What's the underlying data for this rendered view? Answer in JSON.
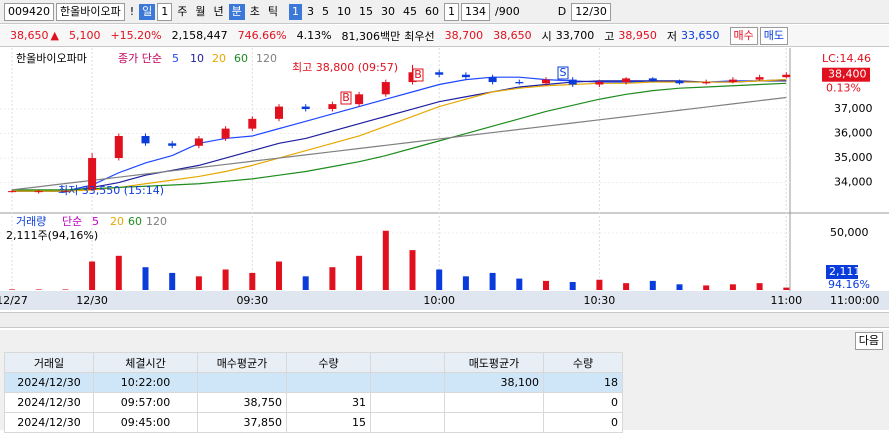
{
  "toolbar": {
    "code": "009420",
    "name": "한올바이오파",
    "alert": "!",
    "period": "일",
    "period_n": "1",
    "periods": [
      "주",
      "월",
      "년",
      "분",
      "초",
      "틱"
    ],
    "intervals": [
      "1",
      "3",
      "5",
      "10",
      "15",
      "30",
      "45",
      "60"
    ],
    "unit": "1",
    "count": "134",
    "max": "/900",
    "d_label": "D",
    "date": "12/30"
  },
  "quote": {
    "price": "38,650",
    "arrow": "▲",
    "change": "5,100",
    "rate": "+15.20%",
    "volume": "2,158,447",
    "vol_rate": "746.66%",
    "turnover": "4.13%",
    "amount": "81,306백만",
    "best": "최우선",
    "ask": "38,700",
    "bid": "38,650",
    "open_label": "시",
    "open": "33,700",
    "high_label": "고",
    "high": "38,950",
    "low_label": "저",
    "low": "33,650",
    "buy": "매수",
    "sell": "매도"
  },
  "chart_data": [
    {
      "type": "candlestick",
      "title": "한올바이오파마",
      "legend_title": "종가 단순",
      "up_color": "#e0101e",
      "down_color": "#0a3cdc",
      "categories": [
        "12/27",
        null,
        null,
        "12/30",
        null,
        null,
        null,
        null,
        null,
        "09:30",
        null,
        null,
        null,
        null,
        null,
        null,
        "10:00",
        null,
        null,
        null,
        null,
        null,
        "10:30",
        null,
        null,
        null,
        null,
        null,
        null,
        "11:00"
      ],
      "open": [
        33650,
        33650,
        33650,
        33700,
        35000,
        35900,
        35600,
        35500,
        35800,
        36200,
        36600,
        37100,
        37000,
        37200,
        37600,
        38100,
        38500,
        38400,
        38300,
        38100,
        38050,
        38200,
        38000,
        38100,
        38250,
        38150,
        38050,
        38100,
        38200,
        38300
      ],
      "high": [
        33700,
        33700,
        33700,
        35200,
        36000,
        36000,
        35700,
        35900,
        36300,
        36700,
        37200,
        37200,
        37300,
        37700,
        38200,
        38800,
        38600,
        38500,
        38400,
        38200,
        38300,
        38300,
        38200,
        38300,
        38300,
        38200,
        38200,
        38300,
        38400,
        38500
      ],
      "low": [
        33600,
        33550,
        33600,
        33650,
        34900,
        35500,
        35400,
        35400,
        35700,
        36100,
        36500,
        36900,
        36900,
        37100,
        37500,
        38000,
        38300,
        38200,
        38000,
        38000,
        37950,
        37900,
        37900,
        38000,
        38100,
        38000,
        38000,
        38050,
        38150,
        38250
      ],
      "close": [
        33650,
        33650,
        33650,
        35000,
        35900,
        35600,
        35500,
        35800,
        36200,
        36600,
        37100,
        37000,
        37200,
        37600,
        38100,
        38500,
        38400,
        38300,
        38100,
        38050,
        38200,
        38000,
        38100,
        38250,
        38150,
        38050,
        38100,
        38200,
        38300,
        38400
      ],
      "series": [
        {
          "name": "5",
          "color": "#1e46ff",
          "values": [
            33650,
            33650,
            33650,
            33900,
            34400,
            34800,
            35100,
            35600,
            35800,
            35900,
            36200,
            36500,
            36800,
            37100,
            37400,
            37700,
            38000,
            38200,
            38300,
            38300,
            38200,
            38150,
            38100,
            38100,
            38150,
            38100,
            38100,
            38150,
            38150,
            38200
          ]
        },
        {
          "name": "10",
          "color": "#1e1ea0",
          "values": [
            33650,
            33650,
            33650,
            33800,
            34000,
            34300,
            34500,
            34700,
            35000,
            35300,
            35600,
            35800,
            36100,
            36400,
            36700,
            37000,
            37300,
            37500,
            37700,
            37900,
            38000,
            38100,
            38150,
            38150,
            38150,
            38150,
            38100,
            38100,
            38150,
            38150
          ]
        },
        {
          "name": "20",
          "color": "#e6a800",
          "values": [
            33650,
            33650,
            33650,
            33700,
            33800,
            33950,
            34100,
            34250,
            34450,
            34700,
            35000,
            35300,
            35600,
            35900,
            36300,
            36700,
            37100,
            37400,
            37700,
            37850,
            37950,
            38000,
            38050,
            38050,
            38100,
            38100,
            38100,
            38100,
            38150,
            38200
          ]
        },
        {
          "name": "60",
          "color": "#1e8c1e",
          "values": [
            33700,
            33700,
            33700,
            33750,
            33800,
            33850,
            33900,
            33950,
            34050,
            34150,
            34300,
            34450,
            34650,
            34850,
            35100,
            35400,
            35700,
            36000,
            36300,
            36600,
            36900,
            37150,
            37400,
            37600,
            37750,
            37850,
            37900,
            37950,
            38000,
            38050
          ]
        },
        {
          "name": "120",
          "color": "#808080",
          "values": [
            33700,
            33830,
            33960,
            34090,
            34220,
            34350,
            34480,
            34610,
            34740,
            34870,
            35000,
            35130,
            35260,
            35390,
            35520,
            35650,
            35780,
            35910,
            36040,
            36170,
            36300,
            36430,
            36560,
            36690,
            36820,
            36950,
            37080,
            37210,
            37340,
            37470
          ]
        }
      ],
      "ylim": [
        32880,
        39490
      ],
      "yticks": [
        {
          "value": 34000,
          "label": "34,000"
        },
        {
          "value": 35000,
          "label": "35,000"
        },
        {
          "value": 36000,
          "label": "36,000"
        },
        {
          "value": 37000,
          "label": "37,000"
        }
      ],
      "annotations": [
        "최고 38,800 (09:57)",
        "최저 33,550 (15:14)"
      ],
      "markers": [
        "B",
        "B",
        "S"
      ],
      "last_label": "38,400",
      "last_rate": "0.13%",
      "lc": "LC:14.46",
      "cursor_time": "11:00:00"
    },
    {
      "type": "bar",
      "title": "거래량",
      "legend_title": "단순",
      "legend": [
        "5",
        "20",
        "60",
        "120"
      ],
      "legend_colors": [
        "#c000c0",
        "#e6a800",
        "#1e8c1e",
        "#808080"
      ],
      "subtitle": "2,111주(94,16%)",
      "values": [
        500,
        500,
        500,
        25000,
        30000,
        20000,
        15000,
        12000,
        18000,
        15000,
        25000,
        12000,
        20000,
        30000,
        52000,
        35000,
        18000,
        12000,
        15000,
        10000,
        8000,
        7000,
        9000,
        6000,
        8000,
        5000,
        4000,
        5000,
        6000,
        2111
      ],
      "ylim": [
        0,
        66700
      ],
      "yticks": [
        {
          "value": 50000,
          "label": "50,000"
        }
      ],
      "last_label": "2,111",
      "last_rate": "94.16%"
    }
  ],
  "table": {
    "button": "다음",
    "headers": [
      "거래일",
      "체결시간",
      "매수평균가",
      "수량",
      "매도평균가",
      "수량"
    ],
    "rows": [
      {
        "date": "2024/12/30",
        "time": "10:22:00",
        "sell_avg": "38,100",
        "sell_qty": "18"
      },
      {
        "date": "2024/12/30",
        "time": "09:57:00",
        "buy_avg": "38,750",
        "buy_qty": "31",
        "sell_qty": "0"
      },
      {
        "date": "2024/12/30",
        "time": "09:45:00",
        "buy_avg": "37,850",
        "buy_qty": "15",
        "sell_qty": "0"
      }
    ]
  }
}
